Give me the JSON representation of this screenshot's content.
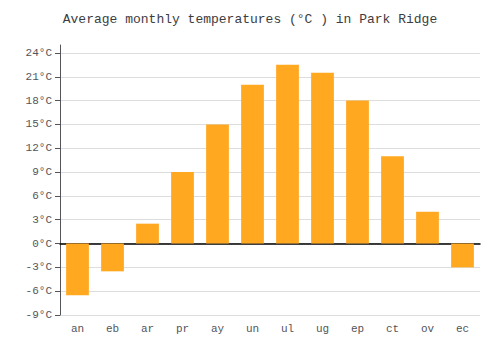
{
  "chart_data": {
    "type": "bar",
    "title": "Average monthly temperatures (°C ) in Park Ridge",
    "categories": [
      "an",
      "eb",
      "ar",
      "pr",
      "ay",
      "un",
      "ul",
      "ug",
      "ep",
      "ct",
      "ov",
      "ec"
    ],
    "values": [
      -6.5,
      -3.5,
      2.5,
      9.0,
      15.0,
      20.0,
      22.5,
      21.5,
      18.0,
      11.0,
      4.0,
      -3.0
    ],
    "color": "#FFA820",
    "ylim": [
      -9,
      25
    ],
    "yticks": [
      {
        "value": -9,
        "label": "-9°C"
      },
      {
        "value": -6,
        "label": "-6°C"
      },
      {
        "value": -3,
        "label": "-3°C"
      },
      {
        "value": 0,
        "label": "0°C"
      },
      {
        "value": 3,
        "label": "3°C"
      },
      {
        "value": 6,
        "label": "6°C"
      },
      {
        "value": 9,
        "label": "9°C"
      },
      {
        "value": 12,
        "label": "12°C"
      },
      {
        "value": 15,
        "label": "15°C"
      },
      {
        "value": 18,
        "label": "18°C"
      },
      {
        "value": 21,
        "label": "21°C"
      },
      {
        "value": 24,
        "label": "24°C"
      }
    ],
    "grid": true
  }
}
